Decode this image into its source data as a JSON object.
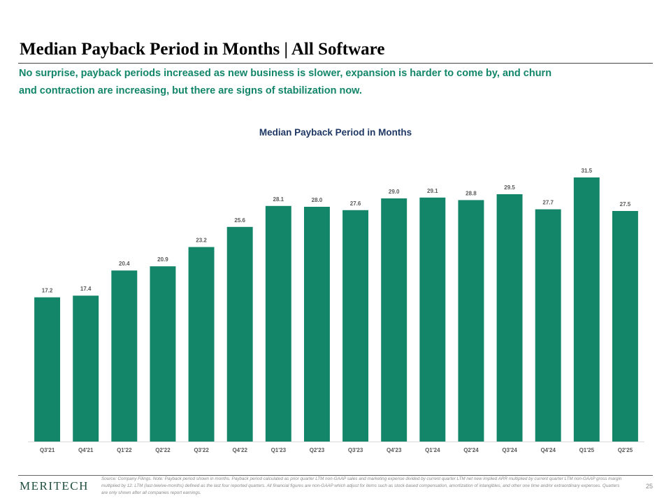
{
  "slide": {
    "title": "Median Payback Period in Months | All Software",
    "subtitle_line1": "No surprise, payback periods increased as new business is slower, expansion is harder to come by, and churn",
    "subtitle_line2": "and contraction are increasing, but there are signs of stabilization now.",
    "footer": {
      "logo": "MERITECH",
      "source": "Source: Company Filings. Note: Payback period shown in months. Payback period calculated as prior quarter LTM non-GAAP sales and marketing expense divided by current quarter LTM net new implied ARR multiplied by current quarter LTM non-GAAP gross margin multiplied by 12. LTM (last-twelve-months) defined as the last four reported quarters. All financial figures are non-GAAP which adjust for items such as stock-based compensation, amortization of intangibles, and other one time and/or extraordinary expenses. Quarters are only shown after all companies report earnings.",
      "page_number": "25"
    }
  },
  "colors": {
    "bar": "#13866a",
    "title_green": "#13866a",
    "chart_title": "#1f3864"
  },
  "chart_data": {
    "type": "bar",
    "title": "Median Payback Period in Months",
    "categories": [
      "Q3'21",
      "Q4'21",
      "Q1'22",
      "Q2'22",
      "Q3'22",
      "Q4'22",
      "Q1'23",
      "Q2'23",
      "Q3'23",
      "Q4'23",
      "Q1'24",
      "Q2'24",
      "Q3'24",
      "Q4'24",
      "Q1'25",
      "Q2'25"
    ],
    "values": [
      17.2,
      17.4,
      20.4,
      20.9,
      23.2,
      25.6,
      28.1,
      28.0,
      27.6,
      29.0,
      29.1,
      28.8,
      29.5,
      27.7,
      31.5,
      27.5
    ],
    "value_labels": [
      "17.2",
      "17.4",
      "20.4",
      "20.9",
      "23.2",
      "25.6",
      "28.1",
      "28.0",
      "27.6",
      "29.0",
      "29.1",
      "28.8",
      "29.5",
      "27.7",
      "31.5",
      "27.5"
    ],
    "xlabel": "",
    "ylabel": "",
    "ylim": [
      0,
      35
    ],
    "grid": false,
    "legend": "none",
    "data_labels": true
  }
}
